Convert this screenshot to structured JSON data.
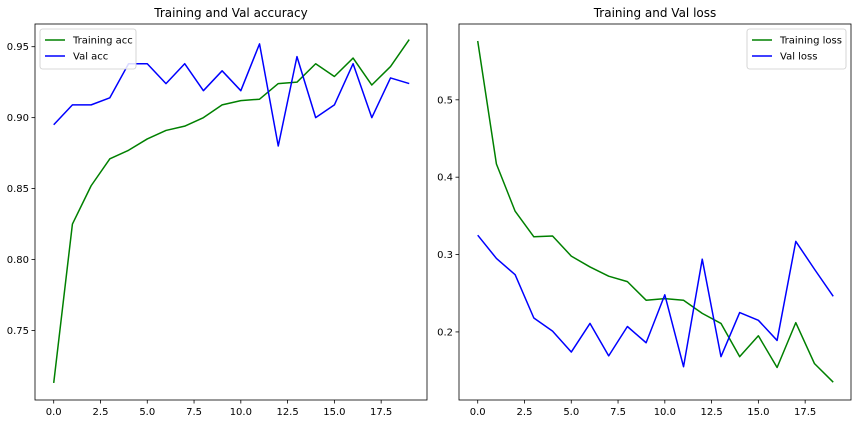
{
  "chart_data": [
    {
      "type": "line",
      "title": "Training and Val accuracy",
      "xlabel": "",
      "ylabel": "",
      "xlim": [
        -1.0,
        19.95
      ],
      "ylim": [
        0.701,
        0.966
      ],
      "xticks": [
        0.0,
        2.5,
        5.0,
        7.5,
        10.0,
        12.5,
        15.0,
        17.5
      ],
      "xtick_labels": [
        "0.0",
        "2.5",
        "5.0",
        "7.5",
        "10.0",
        "12.5",
        "15.0",
        "17.5"
      ],
      "yticks": [
        0.75,
        0.8,
        0.85,
        0.9,
        0.95
      ],
      "ytick_labels": [
        "0.75",
        "0.80",
        "0.85",
        "0.90",
        "0.95"
      ],
      "grid": false,
      "legend_position": "upper-left",
      "x": [
        0,
        1,
        2,
        3,
        4,
        5,
        6,
        7,
        8,
        9,
        10,
        11,
        12,
        13,
        14,
        15,
        16,
        17,
        18,
        19
      ],
      "series": [
        {
          "name": "Training acc",
          "color": "#008000",
          "values": [
            0.713,
            0.825,
            0.852,
            0.871,
            0.877,
            0.885,
            0.891,
            0.894,
            0.9,
            0.909,
            0.912,
            0.913,
            0.924,
            0.925,
            0.938,
            0.929,
            0.942,
            0.923,
            0.936,
            0.955
          ]
        },
        {
          "name": "Val acc",
          "color": "#0000ff",
          "values": [
            0.895,
            0.909,
            0.909,
            0.914,
            0.938,
            0.938,
            0.924,
            0.938,
            0.919,
            0.933,
            0.919,
            0.952,
            0.88,
            0.943,
            0.9,
            0.909,
            0.938,
            0.9,
            0.928,
            0.924
          ]
        }
      ]
    },
    {
      "type": "line",
      "title": "Training and Val loss",
      "xlabel": "",
      "ylabel": "",
      "xlim": [
        -1.0,
        19.95
      ],
      "ylim": [
        0.112,
        0.598
      ],
      "xticks": [
        0.0,
        2.5,
        5.0,
        7.5,
        10.0,
        12.5,
        15.0,
        17.5
      ],
      "xtick_labels": [
        "0.0",
        "2.5",
        "5.0",
        "7.5",
        "10.0",
        "12.5",
        "15.0",
        "17.5"
      ],
      "yticks": [
        0.2,
        0.3,
        0.4,
        0.5
      ],
      "ytick_labels": [
        "0.2",
        "0.3",
        "0.4",
        "0.5"
      ],
      "grid": false,
      "legend_position": "upper-right",
      "x": [
        0,
        1,
        2,
        3,
        4,
        5,
        6,
        7,
        8,
        9,
        10,
        11,
        12,
        13,
        14,
        15,
        16,
        17,
        18,
        19
      ],
      "series": [
        {
          "name": "Training loss",
          "color": "#008000",
          "values": [
            0.576,
            0.417,
            0.356,
            0.323,
            0.324,
            0.298,
            0.284,
            0.272,
            0.265,
            0.241,
            0.243,
            0.241,
            0.224,
            0.211,
            0.168,
            0.195,
            0.154,
            0.212,
            0.159,
            0.135
          ]
        },
        {
          "name": "Val loss",
          "color": "#0000ff",
          "values": [
            0.325,
            0.295,
            0.274,
            0.218,
            0.201,
            0.174,
            0.211,
            0.169,
            0.207,
            0.186,
            0.248,
            0.155,
            0.294,
            0.168,
            0.225,
            0.215,
            0.189,
            0.317,
            0.281,
            0.246
          ]
        }
      ]
    }
  ]
}
